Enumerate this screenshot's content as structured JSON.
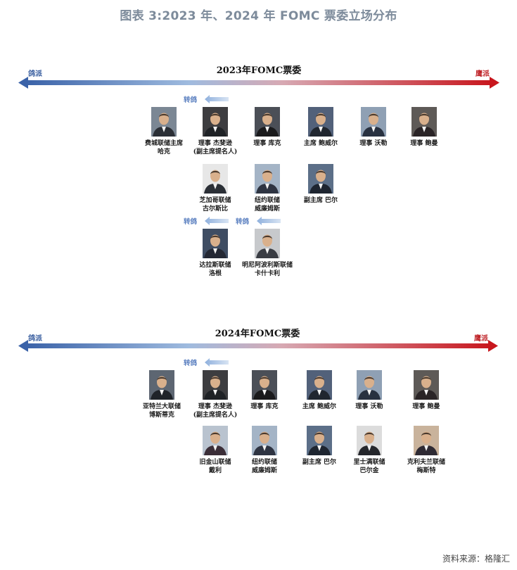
{
  "title": "图表 3:2023 年、2024 年 FOMC 票委立场分布",
  "source": "资料来源：格隆汇",
  "colors": {
    "dove": "#3a5fa0",
    "hawk": "#c0262b",
    "title": "#7d8b9b"
  },
  "panels": [
    {
      "heading": "2023年FOMC票委",
      "dove_label": "鸽派",
      "hawk_label": "鹰派",
      "shift_label": "转鸽",
      "members": [
        {
          "name": "费城联储主席\n哈克",
          "col": 0,
          "row": 0,
          "bg": "#7b8794",
          "suit": "#2b2f36"
        },
        {
          "name": "理事 杰斐逊\n(副主席提名人)",
          "col": 1,
          "row": 0,
          "bg": "#3d3d40",
          "suit": "#1f2226",
          "shift": true
        },
        {
          "name": "理事 库克",
          "col": 2,
          "row": 0,
          "bg": "#4b4f57",
          "suit": "#1a1a1c"
        },
        {
          "name": "主席 鲍威尔",
          "col": 3,
          "row": 0,
          "bg": "#52617a",
          "suit": "#20262f"
        },
        {
          "name": "理事 沃勒",
          "col": 4,
          "row": 0,
          "bg": "#8fa0b4",
          "suit": "#283140"
        },
        {
          "name": "理事 鲍曼",
          "col": 5,
          "row": 0,
          "bg": "#5e5a57",
          "suit": "#2a2426"
        },
        {
          "name": "芝加哥联储\n古尔斯比",
          "col": 1,
          "row": 1,
          "bg": "#e7e7e7",
          "suit": "#2b2f36"
        },
        {
          "name": "纽约联储\n威廉姆斯",
          "col": 2,
          "row": 1,
          "bg": "#a4b4c6",
          "suit": "#2e3442"
        },
        {
          "name": "副主席 巴尔",
          "col": 3,
          "row": 1,
          "bg": "#5c6f88",
          "suit": "#1e2530"
        },
        {
          "name": "达拉斯联储\n洛根",
          "col": 1,
          "row": 2,
          "bg": "#3f4d63",
          "suit": "#242834",
          "shift": true
        },
        {
          "name": "明尼阿波利斯联储\n卡什卡利",
          "col": 2,
          "row": 2,
          "bg": "#c7c9cc",
          "suit": "#3a3d44",
          "shift": true
        }
      ]
    },
    {
      "heading": "2024年FOMC票委",
      "dove_label": "鸽派",
      "hawk_label": "鹰派",
      "shift_label": "转鸽",
      "members": [
        {
          "name": "亚特兰大联储\n博斯蒂克",
          "col": 0,
          "row": 0,
          "bg": "#5d6672",
          "suit": "#1f2329"
        },
        {
          "name": "理事 杰斐逊\n(副主席提名人)",
          "col": 1,
          "row": 0,
          "bg": "#3d3d40",
          "suit": "#1f2226",
          "shift": true
        },
        {
          "name": "理事 库克",
          "col": 2,
          "row": 0,
          "bg": "#4b4f57",
          "suit": "#1a1a1c"
        },
        {
          "name": "主席 鲍威尔",
          "col": 3,
          "row": 0,
          "bg": "#52617a",
          "suit": "#20262f"
        },
        {
          "name": "理事 沃勒",
          "col": 4,
          "row": 0,
          "bg": "#8fa0b4",
          "suit": "#283140"
        },
        {
          "name": "理事 鲍曼",
          "col": 5,
          "row": 0,
          "bg": "#5e5a57",
          "suit": "#2a2426"
        },
        {
          "name": "旧金山联储\n戴利",
          "col": 1,
          "row": 1,
          "bg": "#b9c3cf",
          "suit": "#3b2e38"
        },
        {
          "name": "纽约联储\n威廉姆斯",
          "col": 2,
          "row": 1,
          "bg": "#a4b4c6",
          "suit": "#2e3442"
        },
        {
          "name": "副主席 巴尔",
          "col": 3,
          "row": 1,
          "bg": "#5c6f88",
          "suit": "#1e2530"
        },
        {
          "name": "里士满联储\n巴尔金",
          "col": 4,
          "row": 1,
          "bg": "#dcdcdc",
          "suit": "#25272c"
        },
        {
          "name": "克利夫兰联储\n梅斯特",
          "col": 5,
          "row": 1,
          "bg": "#c9b39c",
          "suit": "#2e2a33"
        }
      ]
    }
  ]
}
